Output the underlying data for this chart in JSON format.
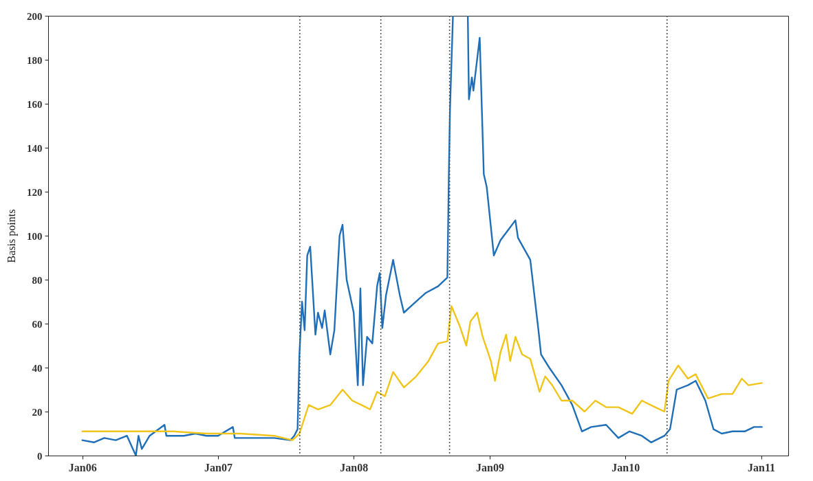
{
  "chart_data": {
    "type": "line",
    "ylabel": "Basis points",
    "xlim": [
      "2005-10-01",
      "2011-03-15"
    ],
    "ylim": [
      0,
      200
    ],
    "xticks": [
      {
        "value": "2006-01-01",
        "label": "Jan06"
      },
      {
        "value": "2007-01-01",
        "label": "Jan07"
      },
      {
        "value": "2008-01-01",
        "label": "Jan08"
      },
      {
        "value": "2009-01-01",
        "label": "Jan09"
      },
      {
        "value": "2010-01-01",
        "label": "Jan10"
      },
      {
        "value": "2011-01-01",
        "label": "Jan11"
      }
    ],
    "yticks": [
      0,
      20,
      40,
      60,
      80,
      100,
      120,
      140,
      160,
      180,
      200
    ],
    "grid": false,
    "marker": "none",
    "ref_lines": [
      {
        "axis": "x",
        "value": "2007-08-09",
        "color": "#555555",
        "line_style": "dotted"
      },
      {
        "axis": "x",
        "value": "2008-03-14",
        "color": "#555555",
        "line_style": "dotted"
      },
      {
        "axis": "x",
        "value": "2008-09-15",
        "color": "#555555",
        "line_style": "dotted"
      },
      {
        "axis": "x",
        "value": "2010-04-23",
        "color": "#555555",
        "line_style": "dotted"
      }
    ],
    "series": [
      {
        "color": "#1e6fb8",
        "line_style": "solid",
        "x": [
          "2006-01-01",
          "2006-02-01",
          "2006-03-01",
          "2006-04-01",
          "2006-05-01",
          "2006-05-25",
          "2006-06-01",
          "2006-06-10",
          "2006-07-01",
          "2006-08-10",
          "2006-08-15",
          "2006-10-01",
          "2006-11-01",
          "2006-12-01",
          "2007-01-01",
          "2007-02-10",
          "2007-02-15",
          "2007-04-01",
          "2007-06-01",
          "2007-07-15",
          "2007-07-25",
          "2007-08-03",
          "2007-08-08",
          "2007-08-15",
          "2007-08-22",
          "2007-08-29",
          "2007-09-06",
          "2007-09-20",
          "2007-09-27",
          "2007-10-08",
          "2007-10-15",
          "2007-10-30",
          "2007-11-10",
          "2007-11-24",
          "2007-12-02",
          "2007-12-13",
          "2008-01-01",
          "2008-01-12",
          "2008-01-19",
          "2008-01-26",
          "2008-02-06",
          "2008-02-20",
          "2008-03-04",
          "2008-03-11",
          "2008-03-18",
          "2008-03-28",
          "2008-04-16",
          "2008-05-04",
          "2008-05-15",
          "2008-06-10",
          "2008-07-13",
          "2008-08-15",
          "2008-09-09",
          "2008-09-13",
          "2008-09-16",
          "2008-09-24",
          "2008-10-15",
          "2008-11-03",
          "2008-11-06",
          "2008-11-14",
          "2008-11-18",
          "2008-12-05",
          "2008-12-16",
          "2008-12-24",
          "2009-01-12",
          "2009-01-30",
          "2009-02-17",
          "2009-03-11",
          "2009-03-18",
          "2009-04-20",
          "2009-05-12",
          "2009-05-19",
          "2009-06-10",
          "2009-07-13",
          "2009-08-11",
          "2009-09-06",
          "2009-10-01",
          "2009-11-10",
          "2009-12-13",
          "2010-01-12",
          "2010-02-14",
          "2010-03-11",
          "2010-04-16",
          "2010-05-01",
          "2010-05-19",
          "2010-06-18",
          "2010-07-09",
          "2010-08-04",
          "2010-08-26",
          "2010-09-17",
          "2010-10-16",
          "2010-11-18",
          "2010-12-13",
          "2011-01-03"
        ],
        "values": [
          7,
          6,
          8,
          7,
          9,
          0,
          9,
          3,
          9,
          14,
          9,
          9,
          10,
          9,
          9,
          13,
          8,
          8,
          8,
          7,
          9,
          12,
          46,
          70,
          57,
          91,
          95,
          55,
          65,
          58,
          66,
          46,
          57,
          100,
          105,
          80,
          65,
          32,
          76,
          32,
          54,
          51,
          77,
          83,
          58,
          73,
          89,
          73,
          65,
          69,
          74,
          77,
          81,
          128,
          157,
          200,
          null,
          200,
          162,
          172,
          166,
          190,
          128,
          122,
          91,
          98,
          102,
          107,
          99,
          89,
          57,
          46,
          40,
          32,
          23,
          11,
          13,
          14,
          8,
          11,
          9,
          6,
          9,
          12,
          30,
          32,
          34,
          25,
          12,
          10,
          11,
          11,
          13,
          13
        ]
      },
      {
        "color": "#f0c419",
        "line_style": "solid",
        "x": [
          "2006-01-01",
          "2006-03-01",
          "2006-06-01",
          "2006-09-01",
          "2006-12-01",
          "2007-03-01",
          "2007-06-01",
          "2007-07-20",
          "2007-08-08",
          "2007-09-02",
          "2007-09-27",
          "2007-10-30",
          "2007-12-02",
          "2007-12-28",
          "2008-01-22",
          "2008-02-14",
          "2008-03-04",
          "2008-03-25",
          "2008-04-16",
          "2008-05-15",
          "2008-06-17",
          "2008-07-20",
          "2008-08-15",
          "2008-09-09",
          "2008-09-20",
          "2008-10-12",
          "2008-10-30",
          "2008-11-10",
          "2008-11-28",
          "2008-12-13",
          "2009-01-04",
          "2009-01-15",
          "2009-01-30",
          "2009-02-14",
          "2009-02-25",
          "2009-03-11",
          "2009-03-29",
          "2009-04-20",
          "2009-05-15",
          "2009-05-30",
          "2009-06-18",
          "2009-07-13",
          "2009-08-11",
          "2009-09-13",
          "2009-10-12",
          "2009-11-10",
          "2009-12-13",
          "2010-01-19",
          "2010-02-14",
          "2010-03-22",
          "2010-04-16",
          "2010-04-27",
          "2010-05-23",
          "2010-06-18",
          "2010-07-09",
          "2010-08-11",
          "2010-09-17",
          "2010-10-16",
          "2010-11-10",
          "2010-11-28",
          "2011-01-03"
        ],
        "values": [
          11,
          11,
          11,
          11,
          10,
          10,
          9,
          7,
          10,
          23,
          21,
          23,
          30,
          25,
          23,
          21,
          29,
          27,
          38,
          31,
          36,
          43,
          51,
          52,
          68,
          59,
          50,
          61,
          65,
          54,
          43,
          34,
          47,
          55,
          43,
          54,
          46,
          44,
          29,
          36,
          32,
          25,
          25,
          20,
          25,
          22,
          22,
          19,
          25,
          22,
          20,
          34,
          41,
          35,
          37,
          26,
          28,
          28,
          35,
          32,
          33
        ]
      }
    ]
  }
}
